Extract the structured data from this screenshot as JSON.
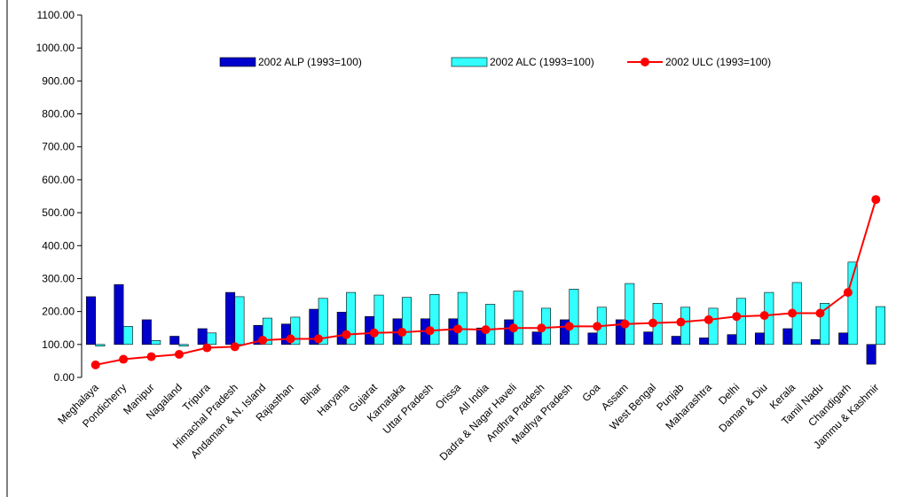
{
  "chart_data": {
    "type": "bar_line",
    "categories": [
      "Meghalaya",
      "Pondicherry",
      "Manipur",
      "Nagaland",
      "Tripura",
      "Himachal Pradesh",
      "Andaman & N. Island",
      "Rajasthan",
      "Bihar",
      "Haryana",
      "Gujarat",
      "Karnataka",
      "Uttar Pradesh",
      "Orissa",
      "All India",
      "Dadra & Nagar Haveli",
      "Andhra Pradesh",
      "Madhya Pradesh",
      "Goa",
      "Assam",
      "West Bengal",
      "Punjab",
      "Maharashtra",
      "Delhi",
      "Daman & Diu",
      "Kerala",
      "Tamil Nadu",
      "Chandigarh",
      "Jammu & Kashmir"
    ],
    "series": [
      {
        "name": "2002 ALP (1993=100)",
        "type": "bar",
        "color": "#0000cc",
        "values": [
          245,
          282,
          175,
          125,
          148,
          258,
          158,
          162,
          207,
          198,
          185,
          178,
          178,
          178,
          150,
          175,
          138,
          175,
          135,
          175,
          138,
          125,
          120,
          130,
          135,
          148,
          115,
          135,
          40
        ]
      },
      {
        "name": "2002 ALC (1993=100)",
        "type": "bar",
        "color": "#33ffff",
        "values": [
          95,
          155,
          112,
          95,
          135,
          245,
          180,
          183,
          240,
          258,
          250,
          243,
          252,
          258,
          222,
          262,
          210,
          268,
          213,
          285,
          225,
          213,
          210,
          240,
          258,
          288,
          225,
          350,
          215
        ]
      },
      {
        "name": "2002 ULC (1993=100)",
        "type": "line",
        "color": "#ff0000",
        "values": [
          38,
          55,
          63,
          70,
          90,
          93,
          113,
          117,
          117,
          130,
          135,
          137,
          142,
          147,
          145,
          150,
          150,
          155,
          155,
          162,
          165,
          168,
          175,
          185,
          188,
          195,
          195,
          258,
          540
        ]
      }
    ],
    "bar_base": 100,
    "ylim": [
      0,
      1100
    ],
    "yticks": [
      {
        "value": 0,
        "label": "0.00"
      },
      {
        "value": 100,
        "label": "100.00"
      },
      {
        "value": 200,
        "label": "200.00"
      },
      {
        "value": 300,
        "label": "300.00"
      },
      {
        "value": 400,
        "label": "400.00"
      },
      {
        "value": 500,
        "label": "500.00"
      },
      {
        "value": 600,
        "label": "600.00"
      },
      {
        "value": 700,
        "label": "700.00"
      },
      {
        "value": 800,
        "label": "800.00"
      },
      {
        "value": 900,
        "label": "900.00"
      },
      {
        "value": 1000,
        "label": "1000.00"
      },
      {
        "value": 1100,
        "label": "1100.00"
      }
    ],
    "grid": false,
    "legend": "top"
  }
}
